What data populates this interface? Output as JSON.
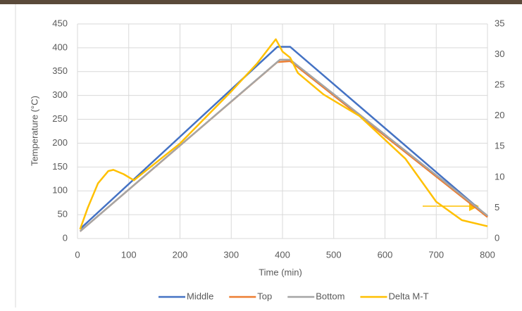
{
  "chart_data": {
    "type": "line",
    "x_label": "Time (min)",
    "y_label": "Temperature (°C)",
    "xlim": [
      0,
      800
    ],
    "xticks": [
      0,
      100,
      200,
      300,
      400,
      500,
      600,
      700,
      800
    ],
    "ylim": [
      0,
      450
    ],
    "yticks": [
      0,
      50,
      100,
      150,
      200,
      250,
      300,
      350,
      400,
      450
    ],
    "y2lim": [
      0,
      35
    ],
    "y2ticks": [
      0,
      5,
      10,
      15,
      20,
      25,
      30,
      35
    ],
    "grid": true,
    "legend": "bottom",
    "series": [
      {
        "name": "Middle",
        "color": "#4472c4",
        "x": [
          5,
          390,
          415,
          800
        ],
        "values": [
          20,
          402,
          402,
          47
        ]
      },
      {
        "name": "Top",
        "color": "#ed7d31",
        "x": [
          5,
          390,
          415,
          800
        ],
        "values": [
          15,
          370,
          372,
          45
        ]
      },
      {
        "name": "Bottom",
        "color": "#a5a5a5",
        "x": [
          5,
          395,
          415,
          800
        ],
        "values": [
          15,
          375,
          375,
          48
        ]
      },
      {
        "name": "Delta M-T",
        "color": "#ffc000",
        "axis": "y2",
        "x": [
          5,
          20,
          40,
          60,
          70,
          90,
          110,
          200,
          300,
          350,
          387,
          400,
          415,
          430,
          480,
          550,
          640,
          700,
          750,
          800
        ],
        "values": [
          1.5,
          5,
          9,
          11,
          11.2,
          10.5,
          9.5,
          15.5,
          24,
          28.5,
          32.5,
          30.5,
          29.5,
          27,
          23.5,
          20,
          13,
          6,
          3,
          2
        ]
      }
    ]
  }
}
